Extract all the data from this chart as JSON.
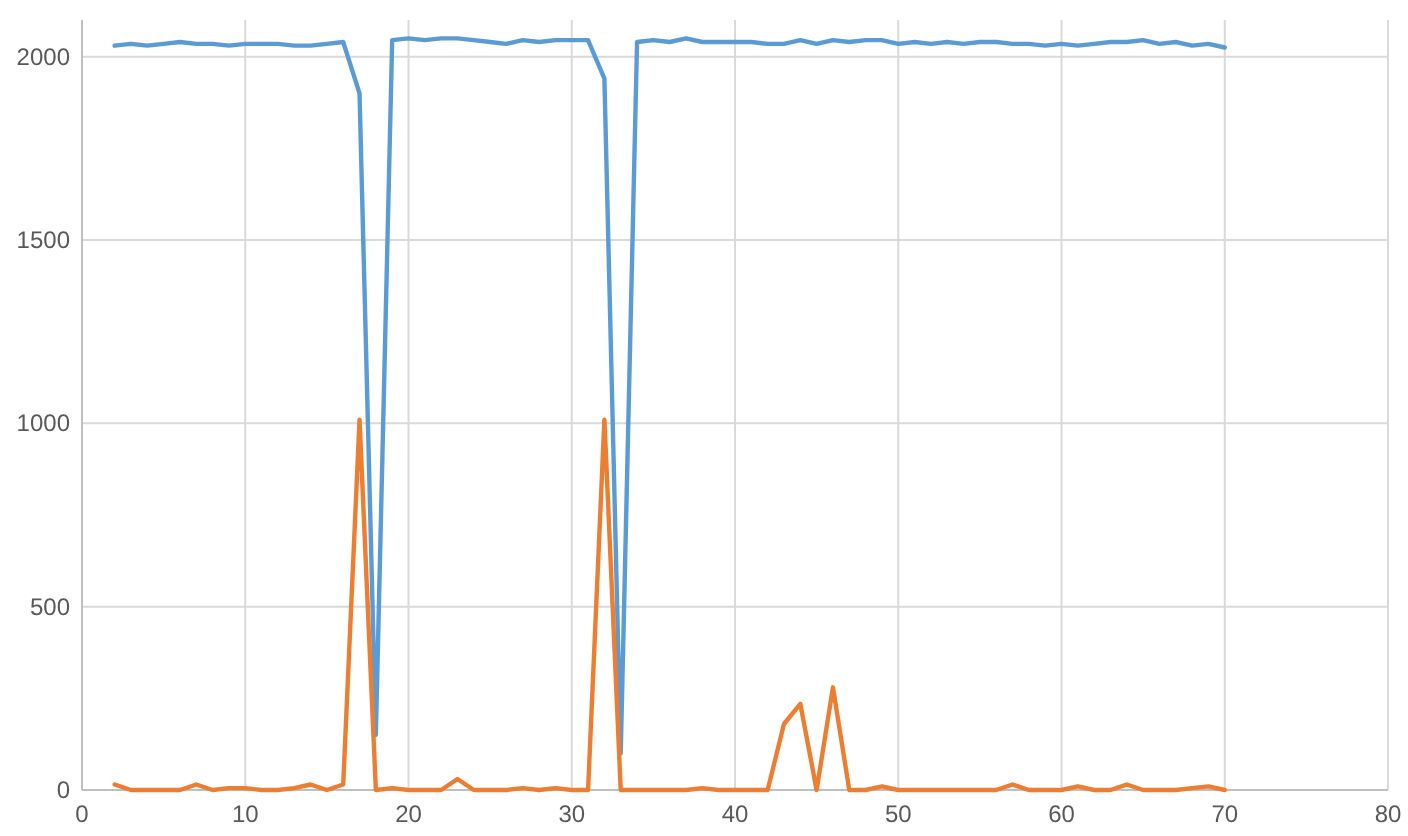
{
  "chart_data": {
    "type": "line",
    "x": [
      2,
      3,
      4,
      5,
      6,
      7,
      8,
      9,
      10,
      11,
      12,
      13,
      14,
      15,
      16,
      17,
      18,
      19,
      20,
      21,
      22,
      23,
      24,
      25,
      26,
      27,
      28,
      29,
      30,
      31,
      32,
      33,
      34,
      35,
      36,
      37,
      38,
      39,
      40,
      41,
      42,
      43,
      44,
      45,
      46,
      47,
      48,
      49,
      50,
      51,
      52,
      53,
      54,
      55,
      56,
      57,
      58,
      59,
      60,
      61,
      62,
      63,
      64,
      65,
      66,
      67,
      68,
      69,
      70
    ],
    "series": [
      {
        "color": "#5b9bd5",
        "values": [
          2030,
          2035,
          2030,
          2035,
          2040,
          2035,
          2035,
          2030,
          2035,
          2035,
          2035,
          2030,
          2030,
          2035,
          2040,
          1900,
          150,
          2045,
          2050,
          2045,
          2050,
          2050,
          2045,
          2040,
          2035,
          2045,
          2040,
          2045,
          2045,
          2045,
          1940,
          100,
          2040,
          2045,
          2040,
          2050,
          2040,
          2040,
          2040,
          2040,
          2035,
          2035,
          2045,
          2035,
          2045,
          2040,
          2045,
          2045,
          2035,
          2040,
          2035,
          2040,
          2035,
          2040,
          2040,
          2035,
          2035,
          2030,
          2035,
          2030,
          2035,
          2040,
          2040,
          2045,
          2035,
          2040,
          2030,
          2035,
          2025
        ]
      },
      {
        "color": "#ed7d31",
        "values": [
          15,
          0,
          0,
          0,
          0,
          15,
          0,
          5,
          5,
          0,
          0,
          5,
          15,
          0,
          15,
          1010,
          0,
          5,
          0,
          0,
          0,
          30,
          0,
          0,
          0,
          5,
          0,
          5,
          0,
          0,
          1010,
          0,
          0,
          0,
          0,
          0,
          5,
          0,
          0,
          0,
          0,
          180,
          235,
          0,
          280,
          0,
          0,
          10,
          0,
          0,
          0,
          0,
          0,
          0,
          0,
          15,
          0,
          0,
          0,
          10,
          0,
          0,
          15,
          0,
          0,
          0,
          5,
          10,
          0
        ]
      }
    ],
    "xlim": [
      0,
      80
    ],
    "xticks": [
      0,
      10,
      20,
      30,
      40,
      50,
      60,
      70,
      80
    ],
    "ylim": [
      0,
      2100
    ],
    "yticks": [
      0,
      500,
      1000,
      1500,
      2000
    ],
    "grid": true,
    "marker": "none",
    "line_style": "solid"
  }
}
